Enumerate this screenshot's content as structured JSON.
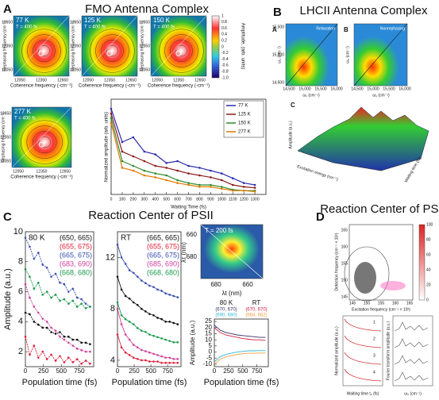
{
  "panels": [
    {
      "label": "A",
      "title": "FMO Antenna Complex"
    },
    {
      "label": "B",
      "title": "LHCII Antenna Complex"
    },
    {
      "label": "C",
      "title": "Reaction Center of PSII"
    },
    {
      "label": "D",
      "title": "Reaction Center of PSII"
    }
  ],
  "fmo_maps": {
    "temperatures": [
      "77 K",
      "125 K",
      "150 K",
      "277 K"
    ],
    "time": "T = 400 fs",
    "y_label": "Rephasing frequency (cm⁻¹)",
    "x_label": "Coherence frequency (-cm⁻¹)",
    "ticks": [
      "12050",
      "12350",
      "12650"
    ],
    "colorbar_label": "Amplitude, (arb. units)",
    "colorbar_ticks": [
      "1",
      "0.8",
      "0.6",
      "0.4",
      "0.2",
      "0",
      "-0.2",
      "-0.4",
      "-0.6",
      "-0.8",
      "-1.0"
    ]
  },
  "lhcii": {
    "sub_labels": [
      "A",
      "B",
      "C"
    ],
    "map_titles": [
      "Relaxation",
      "Nonrephasing"
    ],
    "y_label": "ω₃ (cm⁻¹)",
    "x_label": "ω₁ (cm⁻¹)",
    "ticks": [
      "14,500",
      "15,000",
      "15,500",
      "16,000"
    ],
    "surface_z": "Amplitude (a.u.)",
    "surface_x": "Excitation energy (cm⁻¹)",
    "surface_y": "Waiting time (fs)"
  },
  "psii_map": {
    "time": "T = 200 fs",
    "y_label": "λτ (nm)",
    "x_label": "λt (nm)",
    "yticks": [
      "660",
      "680"
    ],
    "xticks": [
      "680",
      "660"
    ]
  },
  "psii_d": {
    "y_label": "Detection frequency (cm⁻¹ × 10²)",
    "x_label": "Excitation frequency (cm⁻¹ × 10²)",
    "ticks": [
      "145",
      "150",
      "155",
      "160",
      "165"
    ],
    "colorbar_ticks": [
      "0",
      "20",
      "40",
      "60",
      "80",
      "100"
    ],
    "trace_labels": [
      "1",
      "2",
      "3",
      "4"
    ],
    "trace_y_label": "Normalized amplitude (a.u.)",
    "trace_x_label": "Waiting time t₂ (fs)",
    "ft_y_label": "Fourier transform amplitude (a.u.)",
    "ft_x_label": "ω₂ (cm⁻¹)"
  },
  "chart_data": [
    {
      "type": "line",
      "y_label": "Normalized amplitude (arb. units)",
      "x_label": "Waiting Time (fs)",
      "legend": "upper right",
      "x": [
        0,
        100,
        200,
        300,
        400,
        500,
        600,
        700,
        800,
        900,
        1000,
        1100,
        1200,
        1300
      ],
      "xlim": [
        0,
        1400
      ],
      "xticks": [
        0,
        100,
        200,
        300,
        400,
        500,
        600,
        700,
        800,
        900,
        1000,
        1100,
        1200,
        1300
      ],
      "ylim": [
        0,
        1
      ],
      "series": [
        {
          "name": "77 K",
          "color": "#2b2bb0",
          "values": [
            0.9,
            0.55,
            0.6,
            0.45,
            0.42,
            0.33,
            0.35,
            0.3,
            0.28,
            0.25,
            0.22,
            0.17,
            0.12,
            0.1
          ]
        },
        {
          "name": "125 K",
          "color": "#8b1a1a",
          "values": [
            0.85,
            0.45,
            0.4,
            0.35,
            0.3,
            0.28,
            0.25,
            0.22,
            0.2,
            0.18,
            0.15,
            0.1,
            0.08,
            0.07
          ]
        },
        {
          "name": "150 K",
          "color": "#2e8b2e",
          "values": [
            0.8,
            0.35,
            0.3,
            0.25,
            0.22,
            0.2,
            0.15,
            0.12,
            0.1,
            0.1,
            0.08,
            0.05,
            0.04,
            0.04
          ]
        },
        {
          "name": "277 K",
          "color": "#e07b00",
          "values": [
            0.75,
            0.28,
            0.25,
            0.2,
            0.18,
            0.15,
            0.12,
            0.1,
            0.08,
            0.08,
            0.06,
            0.04,
            0.04,
            0.03
          ]
        }
      ]
    },
    {
      "type": "line",
      "annotation": "80 K",
      "y_label": "Amplitude (a.u.)",
      "x_label": "Population time (fs)",
      "legend": "upper right",
      "x": [
        0,
        60,
        120,
        180,
        240,
        300,
        360,
        420,
        480,
        540,
        600,
        660,
        720,
        780,
        840,
        900
      ],
      "xlim": [
        0,
        950
      ],
      "xticks": [
        0,
        250,
        500,
        750
      ],
      "ylim": [
        1,
        10
      ],
      "yticks": [
        2,
        4,
        6,
        8,
        10
      ],
      "series": [
        {
          "name": "(650, 665)",
          "color": "#111111",
          "values": [
            4.6,
            4.5,
            4.0,
            3.8,
            3.6,
            3.6,
            3.3,
            3.2,
            3.3,
            3.0,
            3.0,
            2.8,
            2.8,
            2.6,
            2.6,
            2.5
          ]
        },
        {
          "name": "(655, 675)",
          "color": "#e0203a",
          "values": [
            3.0,
            1.8,
            2.4,
            1.6,
            2.0,
            1.5,
            1.8,
            1.4,
            1.7,
            1.3,
            1.6,
            1.3,
            1.5,
            1.2,
            1.4,
            1.2
          ]
        },
        {
          "name": "(665, 675)",
          "color": "#3a4fb0",
          "values": [
            9.6,
            9.0,
            8.2,
            8.6,
            7.8,
            7.6,
            7.0,
            7.2,
            6.6,
            6.5,
            6.0,
            6.2,
            5.6,
            5.5,
            5.2,
            5.0
          ]
        },
        {
          "name": "(683, 690)",
          "color": "#d0409a",
          "values": [
            6.5,
            5.6,
            5.0,
            4.6,
            4.2,
            4.0,
            3.6,
            3.4,
            3.0,
            2.8,
            2.6,
            2.4,
            2.2,
            2.1,
            2.0,
            2.0
          ]
        },
        {
          "name": "(668, 680)",
          "color": "#1a9a4a",
          "values": [
            7.5,
            7.0,
            6.2,
            6.6,
            5.8,
            6.0,
            5.6,
            5.8,
            5.4,
            5.5,
            5.2,
            5.4,
            5.0,
            5.2,
            4.9,
            5.0
          ]
        }
      ]
    },
    {
      "type": "line",
      "annotation": "RT",
      "x_label": "Population time (fs)",
      "legend": "upper right",
      "x": [
        0,
        60,
        120,
        180,
        240,
        300,
        360,
        420,
        480,
        540,
        600,
        660,
        720,
        780,
        840,
        900
      ],
      "xlim": [
        0,
        950
      ],
      "xticks": [
        0,
        250,
        500,
        750
      ],
      "ylim": [
        3.5,
        14
      ],
      "yticks": [
        4,
        8,
        12
      ],
      "series": [
        {
          "name": "(665, 665)",
          "color": "#111111",
          "values": [
            10.5,
            9.5,
            9,
            8.8,
            8.5,
            8.3,
            8,
            7.8,
            7.6,
            7.5,
            7.3,
            7.2,
            7,
            7,
            6.9,
            6.8
          ]
        },
        {
          "name": "(655, 675)",
          "color": "#e0203a",
          "values": [
            6,
            5,
            4.6,
            4.4,
            4.2,
            4.1,
            4,
            4,
            3.9,
            3.9,
            3.9,
            3.8,
            3.8,
            3.8,
            3.8,
            3.8
          ]
        },
        {
          "name": "(665, 675)",
          "color": "#3a4fb0",
          "values": [
            13,
            12,
            11.5,
            11,
            10.8,
            10.5,
            10.2,
            10,
            9.8,
            9.7,
            9.5,
            9.4,
            9.2,
            9.1,
            9,
            8.9
          ]
        },
        {
          "name": "(685, 690)",
          "color": "#d0409a",
          "values": [
            8,
            6.8,
            6,
            5.6,
            5.2,
            5,
            4.8,
            4.7,
            4.6,
            4.5,
            4.4,
            4.3,
            4.2,
            4.2,
            4.1,
            4.1
          ]
        },
        {
          "name": "(668, 680)",
          "color": "#1a9a4a",
          "values": [
            8.5,
            7.5,
            7.2,
            7,
            6.8,
            6.5,
            6.3,
            6.2,
            6,
            5.9,
            5.8,
            5.7,
            5.6,
            5.5,
            5.4,
            5.4
          ]
        }
      ]
    },
    {
      "type": "line",
      "annotations": [
        "80 K",
        "RT"
      ],
      "y_label": "Amplitude (a.u.)",
      "x_label": "Population time (fs)",
      "legend": "upper center",
      "x": [
        0,
        100,
        200,
        300,
        400,
        500,
        600,
        700,
        800,
        900
      ],
      "xlim": [
        0,
        950
      ],
      "xticks": [
        0,
        250,
        500,
        750
      ],
      "ylim": [
        -12,
        27
      ],
      "yticks": [
        -10,
        -5,
        0,
        5,
        10,
        15,
        20,
        25
      ],
      "series": [
        {
          "name": "(670, 670)",
          "color": "#333366",
          "values": [
            22,
            18,
            16,
            15,
            14,
            13.5,
            13,
            12.5,
            12,
            12
          ]
        },
        {
          "name": "(670, 670)",
          "color": "#d02040",
          "values": [
            20,
            16,
            14,
            13,
            12,
            11,
            10.5,
            10,
            10,
            9.5
          ]
        },
        {
          "name": "(690, 680)",
          "color": "#30b8d8",
          "values": [
            -8,
            -4,
            -2,
            -1,
            0,
            0.5,
            1,
            1,
            1.2,
            1.2
          ]
        },
        {
          "name": "(684, 662)",
          "color": "#f0a040",
          "values": [
            -10,
            -6,
            -4,
            -3,
            -2,
            -1.5,
            -1,
            -1,
            -0.8,
            -0.8
          ]
        }
      ]
    }
  ]
}
